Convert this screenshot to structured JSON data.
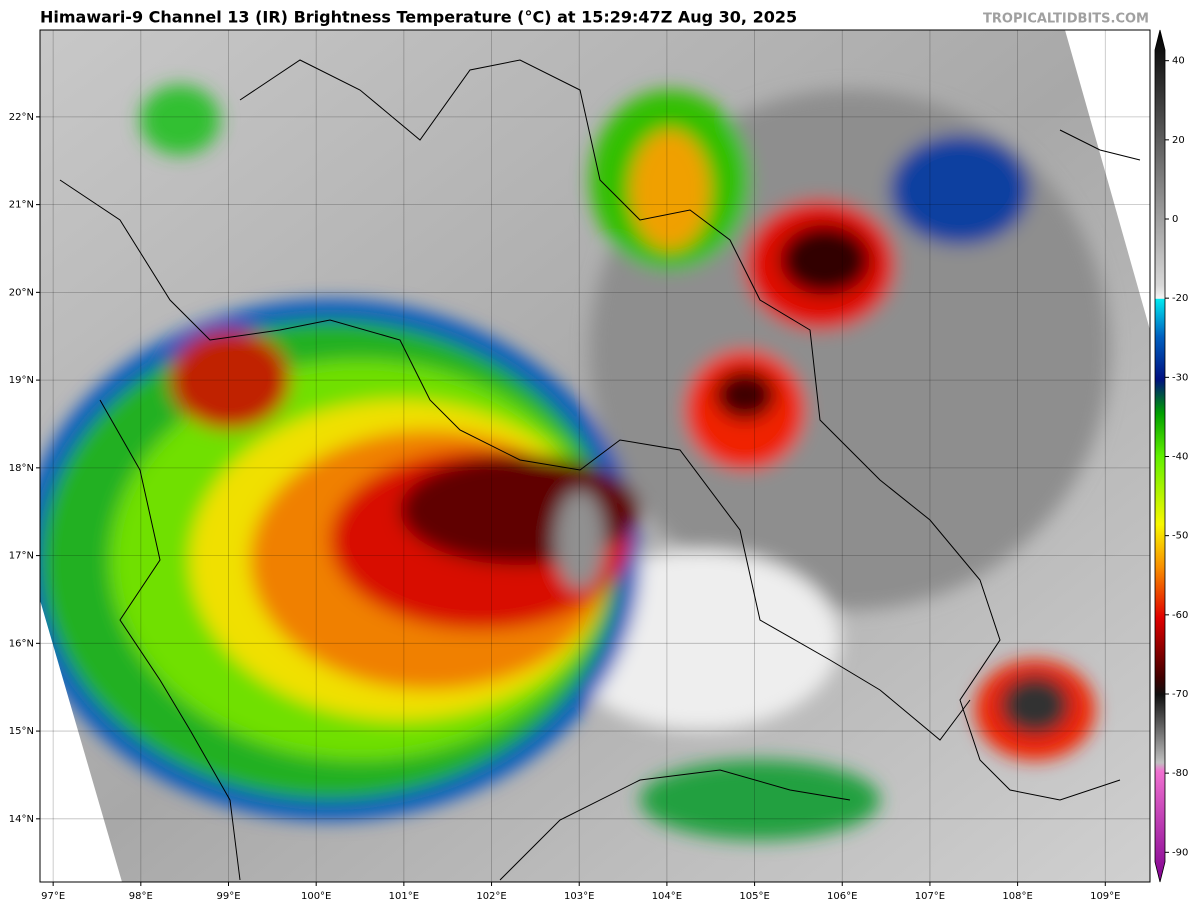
{
  "header": {
    "title": "Himawari-9 Channel 13 (IR) Brightness Temperature (°C) at 15:29:47Z Aug 30, 2025",
    "credit": "TROPICALTIDBITS.COM"
  },
  "map": {
    "xlim": [
      96.85,
      109.51
    ],
    "ylim": [
      13.28,
      22.99
    ],
    "xticks": [
      {
        "value": 97,
        "label": "97°E"
      },
      {
        "value": 98,
        "label": "98°E"
      },
      {
        "value": 99,
        "label": "99°E"
      },
      {
        "value": 100,
        "label": "100°E"
      },
      {
        "value": 101,
        "label": "101°E"
      },
      {
        "value": 102,
        "label": "102°E"
      },
      {
        "value": 103,
        "label": "103°E"
      },
      {
        "value": 104,
        "label": "104°E"
      },
      {
        "value": 105,
        "label": "105°E"
      },
      {
        "value": 106,
        "label": "106°E"
      },
      {
        "value": 107,
        "label": "107°E"
      },
      {
        "value": 108,
        "label": "108°E"
      },
      {
        "value": 109,
        "label": "109°E"
      }
    ],
    "yticks": [
      {
        "value": 14,
        "label": "14°N"
      },
      {
        "value": 15,
        "label": "15°N"
      },
      {
        "value": 16,
        "label": "16°N"
      },
      {
        "value": 17,
        "label": "17°N"
      },
      {
        "value": 18,
        "label": "18°N"
      },
      {
        "value": 19,
        "label": "19°N"
      },
      {
        "value": 20,
        "label": "20°N"
      },
      {
        "value": 21,
        "label": "21°N"
      },
      {
        "value": 22,
        "label": "22°N"
      }
    ]
  },
  "colorbar": {
    "lim": [
      -93.75,
      47.75
    ],
    "ticks": [
      40,
      20,
      0,
      -20,
      -30,
      -40,
      -50,
      -60,
      -70,
      -80,
      -90
    ]
  }
}
